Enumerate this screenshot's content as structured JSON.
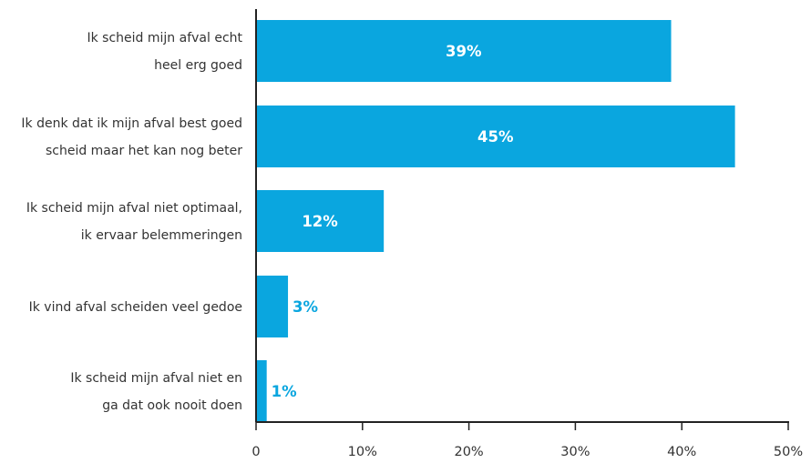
{
  "chart_data": {
    "type": "bar",
    "orientation": "horizontal",
    "categories": [
      [
        "Ik scheid mijn afval echt",
        "heel erg goed"
      ],
      [
        "Ik denk dat ik mijn afval best goed",
        "scheid maar het kan nog beter"
      ],
      [
        "Ik scheid mijn afval niet optimaal,",
        "ik ervaar belemmeringen"
      ],
      [
        "Ik vind afval scheiden veel gedoe"
      ],
      [
        "Ik scheid mijn afval niet en",
        "ga dat ook nooit doen"
      ]
    ],
    "values": [
      39,
      45,
      12,
      3,
      1
    ],
    "value_labels": [
      "39%",
      "45%",
      "12%",
      "3%",
      "1%"
    ],
    "xlim": [
      0,
      50
    ],
    "x_ticks": [
      0,
      10,
      20,
      30,
      40,
      50
    ],
    "x_tick_labels": [
      "0",
      "10%",
      "20%",
      "30%",
      "40%",
      "50%"
    ],
    "title": "",
    "xlabel": "",
    "ylabel": "",
    "grid": false,
    "legend": "none",
    "colors": {
      "bar": "#0aa6df",
      "label_inside": "#ffffff",
      "label_outside": "#0aa6df",
      "axis": "#222222",
      "text": "#333333"
    }
  }
}
